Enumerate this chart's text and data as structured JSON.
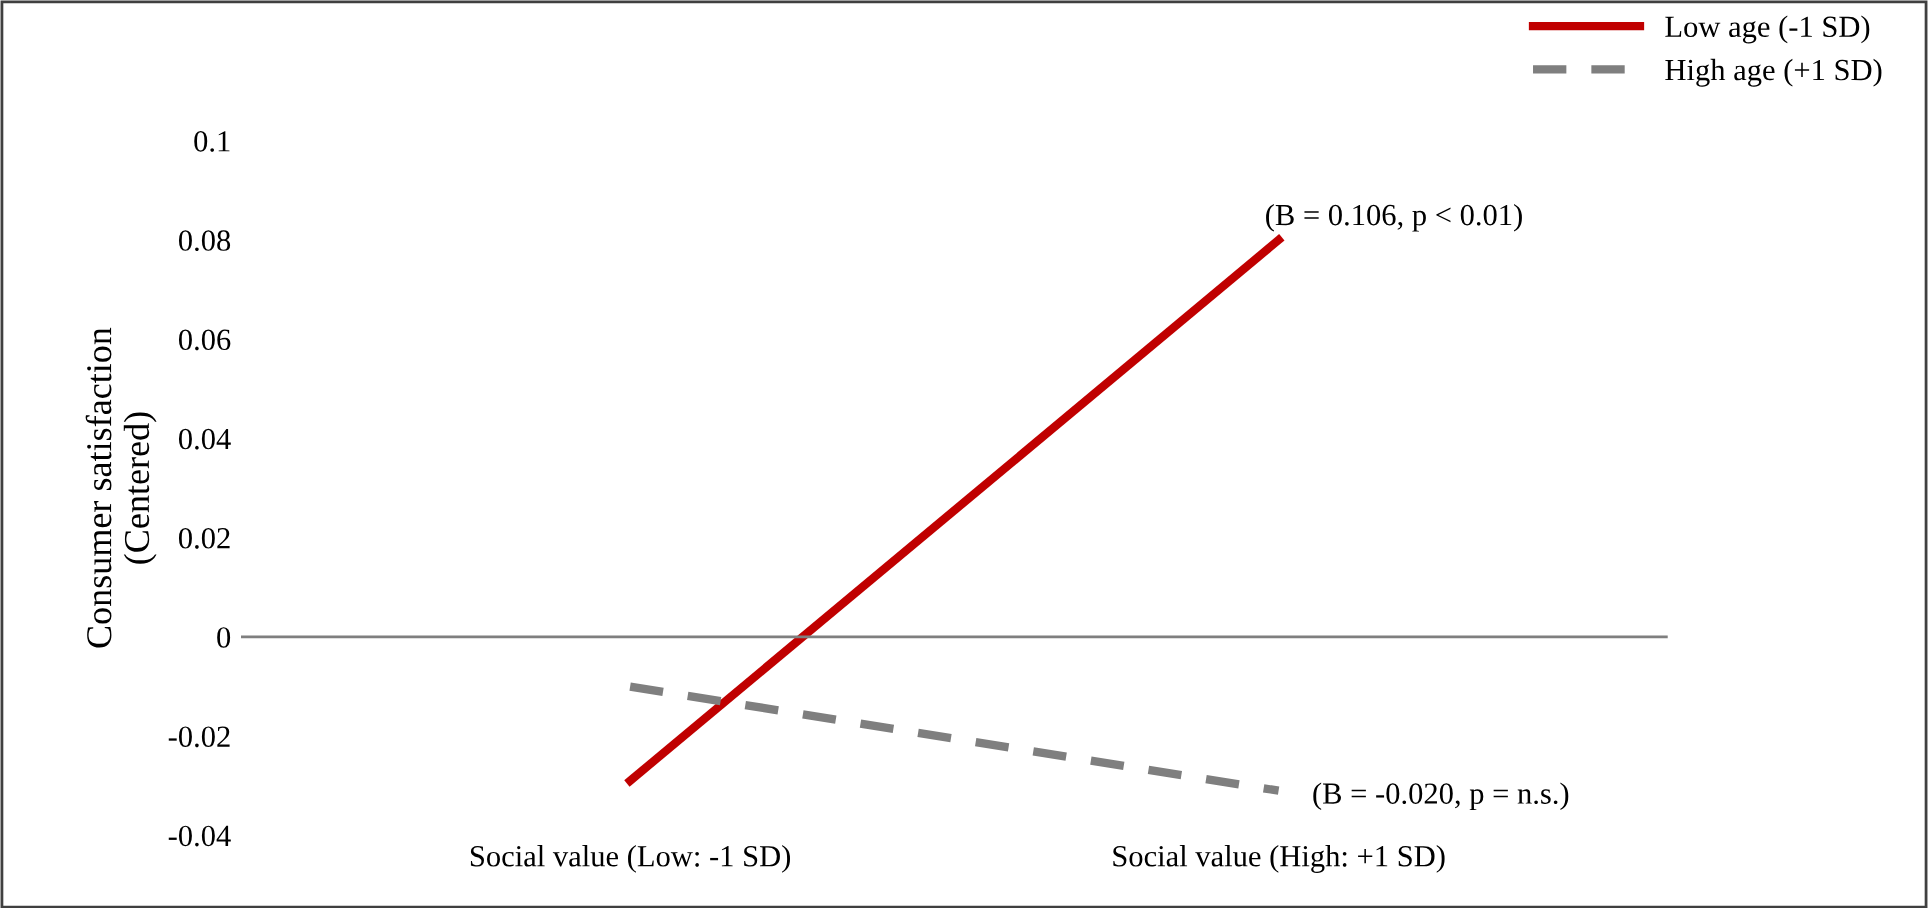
{
  "chart_data": {
    "type": "line",
    "ylabel": "Consumer satisfaction\n(Centered)",
    "categories": [
      "Social value (Low: -1 SD)",
      "Social value (High: +1 SD)"
    ],
    "series": [
      {
        "name": "Low age (-1 SD)",
        "color": "#c00000",
        "values": [
          -0.029,
          0.08
        ],
        "line_style": "solid"
      },
      {
        "name": "High age (+1 SD)",
        "color": "#7f7f7f",
        "values": [
          -0.01,
          -0.031
        ],
        "line_style": "dashed"
      }
    ],
    "ylim": [
      -0.04,
      0.1
    ],
    "yticks": [
      -0.04,
      -0.02,
      0,
      0.02,
      0.04,
      0.06,
      0.08,
      0.1
    ],
    "ref_lines": [
      {
        "axis": "y",
        "value": 0,
        "color": "#7f7f7f"
      }
    ],
    "annotations": [
      {
        "text": "(B = 0.106, p < 0.01)",
        "x": "Social value (High: +1 SD)",
        "y": 0.08
      },
      {
        "text": "(B = -0.020, p = n.s.)",
        "x": "Social value (High: +1 SD)",
        "y": -0.031
      }
    ],
    "grid": false,
    "legend": "top right",
    "marker": "none"
  }
}
